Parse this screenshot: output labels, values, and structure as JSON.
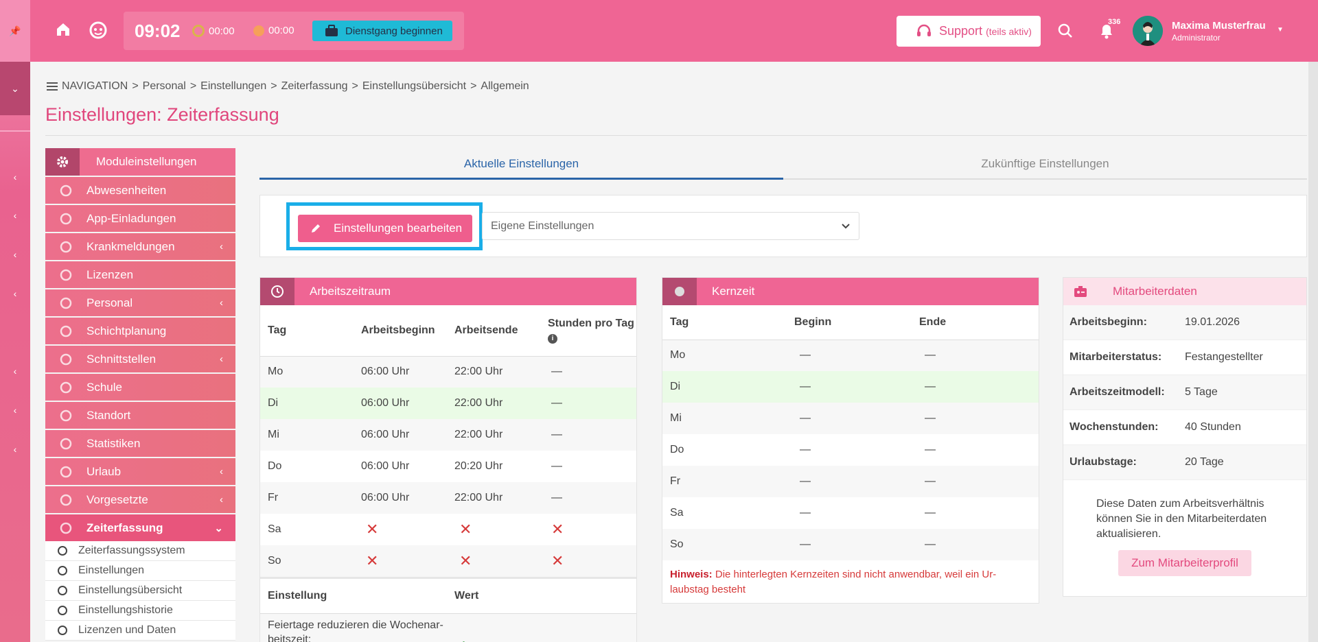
{
  "topbar": {
    "clock": "09:02",
    "timer_work": "00:00",
    "timer_break": "00:00",
    "dienst_label": "Dienstgang beginnen",
    "support_label": "Support",
    "support_sub": "(teils aktiv)",
    "notification_count": "336",
    "user_name": "Maxima Musterfrau",
    "user_role": "Administrator"
  },
  "breadcrumb": {
    "nav_label": "NAVIGATION",
    "items": [
      "Personal",
      "Einstellungen",
      "Zeiterfassung",
      "Einstellungsübersicht",
      "Allgemein"
    ]
  },
  "page_title": "Einstellungen: Zeiterfassung",
  "sidebar": {
    "header": "Moduleinstellungen",
    "items": [
      {
        "label": "Abwesenheiten",
        "icon": "block-icon",
        "expandable": false
      },
      {
        "label": "App-Einladungen",
        "icon": "person-icon",
        "expandable": false
      },
      {
        "label": "Krankmeldungen",
        "icon": "medical-icon",
        "expandable": true
      },
      {
        "label": "Lizenzen",
        "icon": "circle-icon",
        "expandable": false
      },
      {
        "label": "Personal",
        "icon": "group-icon",
        "expandable": true
      },
      {
        "label": "Schichtplanung",
        "icon": "table-icon",
        "expandable": false
      },
      {
        "label": "Schnittstellen",
        "icon": "hierarchy-icon",
        "expandable": true
      },
      {
        "label": "Schule",
        "icon": "school-icon",
        "expandable": false
      },
      {
        "label": "Standort",
        "icon": "location-icon",
        "expandable": false
      },
      {
        "label": "Statistiken",
        "icon": "chart-icon",
        "expandable": false
      },
      {
        "label": "Urlaub",
        "icon": "plane-icon",
        "expandable": true
      },
      {
        "label": "Vorgesetzte",
        "icon": "chart-icon",
        "expandable": true
      },
      {
        "label": "Zeiterfassung",
        "icon": "clock-icon",
        "expandable": true,
        "active": true
      }
    ],
    "subitems": [
      "Zeiterfassungssystem",
      "Einstellungen",
      "Einstellungsübersicht",
      "Einstellungshistorie",
      "Lizenzen und Daten"
    ]
  },
  "tabs": {
    "current": "Aktuelle Einstellungen",
    "future": "Zukünftige Einstellungen"
  },
  "edit": {
    "button": "Einstellungen bearbeiten",
    "select_value": "Eigene Einstellungen"
  },
  "arbeitszeitraum": {
    "title": "Arbeitszeitraum",
    "columns": [
      "Tag",
      "Arbeitsbeginn",
      "Arbeitsende",
      "Stunden pro Tag"
    ],
    "rows": [
      {
        "tag": "Mo",
        "beginn": "06:00 Uhr",
        "ende": "22:00 Uhr",
        "stunden": "—"
      },
      {
        "tag": "Di",
        "beginn": "06:00 Uhr",
        "ende": "22:00 Uhr",
        "stunden": "—"
      },
      {
        "tag": "Mi",
        "beginn": "06:00 Uhr",
        "ende": "22:00 Uhr",
        "stunden": "—"
      },
      {
        "tag": "Do",
        "beginn": "06:00 Uhr",
        "ende": "20:20 Uhr",
        "stunden": "—"
      },
      {
        "tag": "Fr",
        "beginn": "06:00 Uhr",
        "ende": "22:00 Uhr",
        "stunden": "—"
      },
      {
        "tag": "Sa",
        "beginn": "✕",
        "ende": "✕",
        "stunden": "✕"
      },
      {
        "tag": "So",
        "beginn": "✕",
        "ende": "✕",
        "stunden": "✕"
      }
    ],
    "settings_columns": [
      "Einstellung",
      "Wert"
    ],
    "settings_rows": [
      {
        "label": "Feiertage reduzieren die Wochenar-beitszeit:",
        "value": "✓"
      }
    ]
  },
  "kernzeit": {
    "title": "Kernzeit",
    "columns": [
      "Tag",
      "Beginn",
      "Ende"
    ],
    "rows": [
      {
        "tag": "Mo",
        "beginn": "—",
        "ende": "—"
      },
      {
        "tag": "Di",
        "beginn": "—",
        "ende": "—"
      },
      {
        "tag": "Mi",
        "beginn": "—",
        "ende": "—"
      },
      {
        "tag": "Do",
        "beginn": "—",
        "ende": "—"
      },
      {
        "tag": "Fr",
        "beginn": "—",
        "ende": "—"
      },
      {
        "tag": "Sa",
        "beginn": "—",
        "ende": "—"
      },
      {
        "tag": "So",
        "beginn": "—",
        "ende": "—"
      }
    ],
    "hint_label": "Hinweis:",
    "hint_text": "Die hinterlegten Kernzeiten sind nicht anwendbar, weil ein Ur-laubstag besteht"
  },
  "mitarbeiterdaten": {
    "title": "Mitarbeiterdaten",
    "rows": [
      {
        "k": "Arbeitsbeginn:",
        "v": "19.01.2026"
      },
      {
        "k": "Mitarbeiterstatus:",
        "v": "Festangestellter"
      },
      {
        "k": "Arbeitszeitmodell:",
        "v": "5 Tage"
      },
      {
        "k": "Wochenstunden:",
        "v": "40 Stunden"
      },
      {
        "k": "Urlaubstage:",
        "v": "20 Tage"
      }
    ],
    "note": "Diese Daten zum Arbeitsverhältnis können Sie in den Mitarbeiterdaten aktualisieren.",
    "button": "Zum Mitarbeiterprofil"
  },
  "colors": {
    "brand_pink": "#ef6594",
    "accent_blue": "#2a64a8",
    "highlight_frame": "#1aaee8"
  }
}
